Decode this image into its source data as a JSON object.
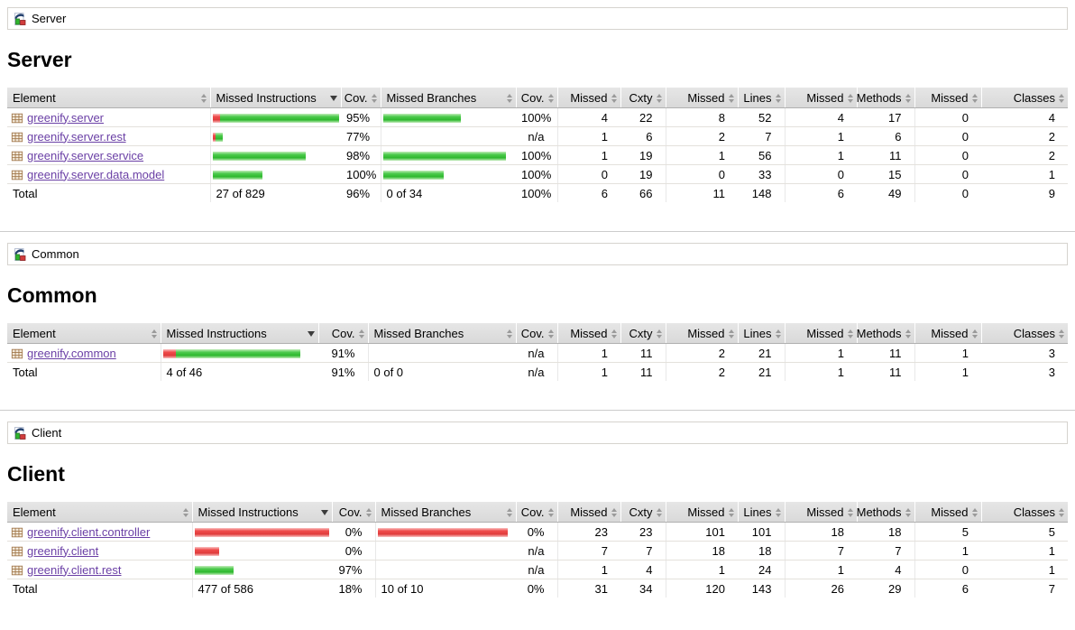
{
  "colors": {
    "link": "#6a3fa5",
    "bar_green": "#2eb82e",
    "bar_red": "#ef4c4c",
    "header_bg": "#e0e0e0",
    "separator": "#cccccc"
  },
  "icons": {
    "breadcrumb": "coverage-group-icon",
    "package": "java-package-icon",
    "sort_unsorted": "sort-toggle-icon",
    "sort_active": "sorted-descending-icon"
  },
  "table": {
    "headers": [
      {
        "label": "Element",
        "align": "left",
        "sorted": false
      },
      {
        "label": "Missed Instructions",
        "align": "left",
        "sorted": true
      },
      {
        "label": "Cov.",
        "align": "right",
        "sorted": false
      },
      {
        "label": "Missed Branches",
        "align": "left",
        "sorted": false
      },
      {
        "label": "Cov.",
        "align": "right",
        "sorted": false
      },
      {
        "label": "Missed",
        "align": "right",
        "sorted": false
      },
      {
        "label": "Cxty",
        "align": "right",
        "sorted": false
      },
      {
        "label": "Missed",
        "align": "right",
        "sorted": false
      },
      {
        "label": "Lines",
        "align": "right",
        "sorted": false
      },
      {
        "label": "Missed",
        "align": "right",
        "sorted": false
      },
      {
        "label": "Methods",
        "align": "right",
        "sorted": false
      },
      {
        "label": "Missed",
        "align": "right",
        "sorted": false
      },
      {
        "label": "Classes",
        "align": "right",
        "sorted": false
      }
    ]
  },
  "sections": [
    {
      "id": "server",
      "breadcrumb": "Server",
      "title": "Server",
      "rows": [
        {
          "name": "greenify.server",
          "ibar": {
            "red": 8,
            "green": 132
          },
          "icov": "95%",
          "bbar": {
            "red": 0,
            "green": 86
          },
          "bcov": "100%",
          "nums": [
            "4",
            "22",
            "8",
            "52",
            "4",
            "17",
            "0",
            "4"
          ]
        },
        {
          "name": "greenify.server.rest",
          "ibar": {
            "red": 3,
            "green": 8
          },
          "icov": "77%",
          "bbar": null,
          "bcov": "n/a",
          "nums": [
            "1",
            "6",
            "2",
            "7",
            "1",
            "6",
            "0",
            "2"
          ]
        },
        {
          "name": "greenify.server.service",
          "ibar": {
            "red": 0,
            "green": 103
          },
          "icov": "98%",
          "bbar": {
            "red": 0,
            "green": 136
          },
          "bcov": "100%",
          "nums": [
            "1",
            "19",
            "1",
            "56",
            "1",
            "11",
            "0",
            "2"
          ]
        },
        {
          "name": "greenify.server.data.model",
          "ibar": {
            "red": 0,
            "green": 55
          },
          "icov": "100%",
          "bbar": {
            "red": 0,
            "green": 67
          },
          "bcov": "100%",
          "nums": [
            "0",
            "19",
            "0",
            "33",
            "0",
            "15",
            "0",
            "1"
          ]
        }
      ],
      "total": {
        "label": "Total",
        "instr": "27 of 829",
        "icov": "96%",
        "branch": "0 of 34",
        "bcov": "100%",
        "nums": [
          "6",
          "66",
          "11",
          "148",
          "6",
          "49",
          "0",
          "9"
        ]
      }
    },
    {
      "id": "common",
      "breadcrumb": "Common",
      "title": "Common",
      "rows": [
        {
          "name": "greenify.common",
          "ibar": {
            "red": 14,
            "green": 138
          },
          "icov": "91%",
          "bbar": null,
          "bcov": "n/a",
          "nums": [
            "1",
            "11",
            "2",
            "21",
            "1",
            "11",
            "1",
            "3"
          ]
        }
      ],
      "total": {
        "label": "Total",
        "instr": "4 of 46",
        "icov": "91%",
        "branch": "0 of 0",
        "bcov": "n/a",
        "nums": [
          "1",
          "11",
          "2",
          "21",
          "1",
          "11",
          "1",
          "3"
        ]
      }
    },
    {
      "id": "client",
      "breadcrumb": "Client",
      "title": "Client",
      "rows": [
        {
          "name": "greenify.client.controller",
          "ibar": {
            "red": 149,
            "green": 0
          },
          "icov": "0%",
          "bbar": {
            "red": 144,
            "green": 0
          },
          "bcov": "0%",
          "nums": [
            "23",
            "23",
            "101",
            "101",
            "18",
            "18",
            "5",
            "5"
          ]
        },
        {
          "name": "greenify.client",
          "ibar": {
            "red": 27,
            "green": 0
          },
          "icov": "0%",
          "bbar": null,
          "bcov": "n/a",
          "nums": [
            "7",
            "7",
            "18",
            "18",
            "7",
            "7",
            "1",
            "1"
          ]
        },
        {
          "name": "greenify.client.rest",
          "ibar": {
            "red": 0,
            "green": 43
          },
          "icov": "97%",
          "bbar": null,
          "bcov": "n/a",
          "nums": [
            "1",
            "4",
            "1",
            "24",
            "1",
            "4",
            "0",
            "1"
          ]
        }
      ],
      "total": {
        "label": "Total",
        "instr": "477 of 586",
        "icov": "18%",
        "branch": "10 of 10",
        "bcov": "0%",
        "nums": [
          "31",
          "34",
          "120",
          "143",
          "26",
          "29",
          "6",
          "7"
        ]
      }
    }
  ]
}
